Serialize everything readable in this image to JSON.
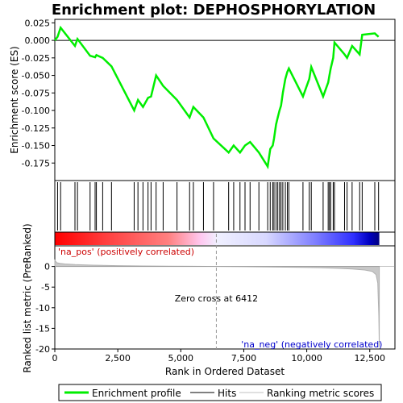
{
  "chart_data": {
    "type": "line",
    "title": "Enrichment plot: DEPHOSPHORYLATION",
    "xlabel": "Rank in Ordered Dataset",
    "top_panel": {
      "ylabel": "Enrichment score (ES)",
      "ylim": [
        -0.2,
        0.03
      ],
      "yticks": [
        0.025,
        0.0,
        -0.025,
        -0.05,
        -0.075,
        -0.1,
        -0.125,
        -0.15,
        -0.175
      ],
      "ytick_labels": [
        "0.025",
        "0.000",
        "-0.025",
        "-0.050",
        "-0.075",
        "-0.100",
        "-0.125",
        "-0.150",
        "-0.175"
      ],
      "series": [
        {
          "name": "Enrichment profile",
          "color": "#00ee00",
          "x": [
            0,
            110,
            230,
            800,
            900,
            1400,
            1600,
            1650,
            1900,
            2250,
            3150,
            3300,
            3500,
            3700,
            3820,
            4020,
            4300,
            4850,
            5350,
            5500,
            5900,
            6300,
            6900,
            7100,
            7350,
            7550,
            7750,
            8100,
            8450,
            8550,
            8650,
            8700,
            8780,
            8850,
            8920,
            8980,
            9050,
            9150,
            9230,
            9290,
            9850,
            10100,
            10180,
            10650,
            10850,
            10900,
            10950,
            11050,
            11100,
            11500,
            11600,
            11800,
            12100,
            12200,
            12700,
            12850
          ],
          "y": [
            0.0,
            0.005,
            0.018,
            -0.008,
            0.002,
            -0.022,
            -0.024,
            -0.021,
            -0.025,
            -0.037,
            -0.1,
            -0.085,
            -0.095,
            -0.082,
            -0.08,
            -0.05,
            -0.065,
            -0.085,
            -0.11,
            -0.095,
            -0.11,
            -0.14,
            -0.16,
            -0.15,
            -0.16,
            -0.15,
            -0.145,
            -0.16,
            -0.18,
            -0.155,
            -0.15,
            -0.14,
            -0.12,
            -0.11,
            -0.1,
            -0.093,
            -0.075,
            -0.055,
            -0.045,
            -0.04,
            -0.08,
            -0.055,
            -0.038,
            -0.08,
            -0.06,
            -0.05,
            -0.04,
            -0.025,
            -0.003,
            -0.02,
            -0.025,
            -0.008,
            -0.02,
            0.008,
            0.01,
            0.005
          ]
        }
      ]
    },
    "hits": [
      110,
      230,
      800,
      900,
      1400,
      1600,
      1650,
      1900,
      2250,
      3150,
      3300,
      3500,
      3700,
      3820,
      4020,
      4300,
      4850,
      5350,
      5500,
      5900,
      6300,
      6900,
      7100,
      7350,
      7550,
      7750,
      8100,
      8450,
      8550,
      8650,
      8700,
      8780,
      8850,
      8920,
      8980,
      9050,
      9150,
      9230,
      9290,
      9850,
      10100,
      10180,
      10650,
      10850,
      10900,
      10950,
      11050,
      11100,
      11500,
      11600,
      11800,
      12100,
      12200,
      12700,
      12850
    ],
    "bottom_panel": {
      "ylabel": "Ranked list metric (PreRanked)",
      "ylim": [
        -20,
        5
      ],
      "yticks": [
        0,
        -5,
        -10,
        -15,
        -20
      ],
      "ytick_labels": [
        "0",
        "-5",
        "-10",
        "-15",
        "-20"
      ],
      "metric_x": [
        0,
        80,
        200,
        400,
        800,
        1500,
        2500,
        3500,
        4500,
        5500,
        6412,
        7500,
        8500,
        9500,
        10500,
        11200,
        11800,
        12300,
        12600,
        12750,
        12820,
        12860,
        12880
      ],
      "metric_y": [
        1.5,
        0.9,
        0.75,
        0.6,
        0.45,
        0.32,
        0.2,
        0.12,
        0.07,
        0.03,
        0.0,
        -0.05,
        -0.12,
        -0.2,
        -0.3,
        -0.45,
        -0.6,
        -0.85,
        -1.2,
        -2.0,
        -4.0,
        -12.0,
        -19.5
      ],
      "annotations": {
        "pos_label": "'na_pos' (positively correlated)",
        "neg_label": "'na_neg' (negatively correlated)",
        "zero_cross": "Zero cross at 6412",
        "zero_cross_x": 6412
      }
    },
    "xlim": [
      0,
      13500
    ],
    "xticks": [
      0,
      2500,
      5000,
      7500,
      10000,
      12500
    ],
    "xtick_labels": [
      "0",
      "2,500",
      "5,000",
      "7,500",
      "10,000",
      "12,500"
    ],
    "dataset_size": 12880
  },
  "legend": {
    "items": [
      {
        "label": "Enrichment profile",
        "color": "#00ee00"
      },
      {
        "label": "Hits",
        "color": "#000000"
      },
      {
        "label": "Ranking metric scores",
        "color": "#c0c0c0"
      }
    ]
  }
}
